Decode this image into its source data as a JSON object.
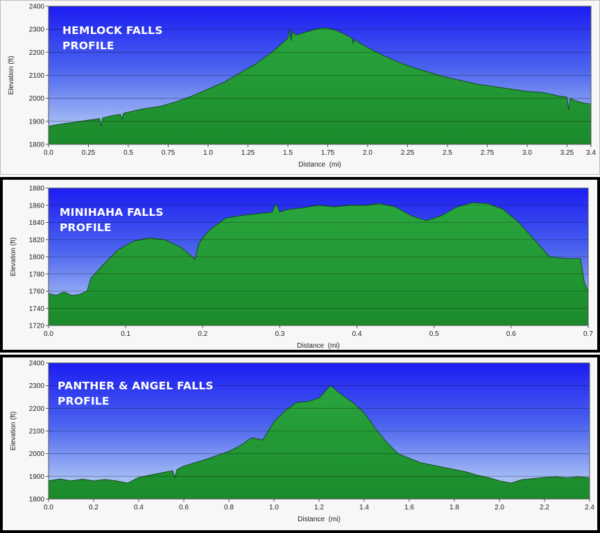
{
  "chart_data": [
    {
      "type": "area",
      "title_lines": [
        "HEMLOCK FALLS",
        "PROFILE"
      ],
      "xlabel": "Distance  (mi)",
      "ylabel": "Elevation (ft)",
      "xlim": [
        0,
        3.4
      ],
      "ylim": [
        1800,
        2400
      ],
      "xticks": [
        0,
        0.25,
        0.5,
        0.75,
        1.0,
        1.25,
        1.5,
        1.75,
        2.0,
        2.25,
        2.5,
        2.75,
        3.0,
        3.25,
        3.4
      ],
      "xtick_labels": [
        "0.0",
        "0.25",
        "0.5",
        "0.75",
        "1.0",
        "1.25",
        "1.5",
        "1.75",
        "2.0",
        "2.25",
        "2.5",
        "2.75",
        "3.0",
        "3.25",
        "3.4"
      ],
      "yticks": [
        1800,
        1900,
        2000,
        2100,
        2200,
        2300,
        2400
      ],
      "ytick_labels": [
        "1800",
        "1900",
        "2000",
        "2100",
        "2200",
        "2300",
        "2400"
      ],
      "grid": true,
      "series": [
        {
          "x": [
            0,
            0.05,
            0.1,
            0.2,
            0.3,
            0.32,
            0.33,
            0.34,
            0.4,
            0.45,
            0.46,
            0.47,
            0.5,
            0.6,
            0.7,
            0.8,
            0.9,
            1.0,
            1.1,
            1.2,
            1.25,
            1.3,
            1.4,
            1.45,
            1.5,
            1.51,
            1.52,
            1.53,
            1.55,
            1.6,
            1.65,
            1.7,
            1.75,
            1.8,
            1.85,
            1.9,
            1.91,
            1.92,
            1.93,
            1.95,
            2.0,
            2.1,
            2.2,
            2.3,
            2.4,
            2.5,
            2.6,
            2.7,
            2.8,
            2.9,
            3.0,
            3.1,
            3.2,
            3.25,
            3.26,
            3.27,
            3.3,
            3.35,
            3.4
          ],
          "y": [
            1878,
            1885,
            1890,
            1900,
            1910,
            1912,
            1880,
            1915,
            1925,
            1930,
            1910,
            1935,
            1940,
            1955,
            1965,
            1985,
            2010,
            2040,
            2070,
            2110,
            2130,
            2150,
            2200,
            2230,
            2260,
            2300,
            2250,
            2290,
            2275,
            2285,
            2295,
            2305,
            2305,
            2295,
            2280,
            2262,
            2240,
            2258,
            2250,
            2240,
            2220,
            2185,
            2155,
            2130,
            2110,
            2090,
            2075,
            2060,
            2050,
            2040,
            2030,
            2025,
            2010,
            2005,
            1950,
            2000,
            1990,
            1980,
            1975
          ]
        }
      ]
    },
    {
      "type": "area",
      "title_lines": [
        "MINIHAHA FALLS",
        "PROFILE"
      ],
      "xlabel": "Distance  (mi)",
      "ylabel": "Elevation (ft)",
      "xlim": [
        0,
        0.7
      ],
      "ylim": [
        1720,
        1880
      ],
      "xticks": [
        0,
        0.1,
        0.2,
        0.3,
        0.4,
        0.5,
        0.6,
        0.7
      ],
      "xtick_labels": [
        "0.0",
        "0.1",
        "0.2",
        "0.3",
        "0.4",
        "0.5",
        "0.6",
        "0.7"
      ],
      "yticks": [
        1720,
        1740,
        1760,
        1780,
        1800,
        1820,
        1840,
        1860,
        1880
      ],
      "ytick_labels": [
        "1720",
        "1740",
        "1760",
        "1780",
        "1800",
        "1820",
        "1840",
        "1860",
        "1880"
      ],
      "grid": true,
      "series": [
        {
          "x": [
            0,
            0.01,
            0.02,
            0.03,
            0.04,
            0.05,
            0.055,
            0.07,
            0.09,
            0.11,
            0.13,
            0.15,
            0.17,
            0.18,
            0.19,
            0.195,
            0.2,
            0.21,
            0.23,
            0.25,
            0.27,
            0.29,
            0.295,
            0.3,
            0.31,
            0.33,
            0.35,
            0.37,
            0.39,
            0.41,
            0.43,
            0.45,
            0.47,
            0.49,
            0.51,
            0.53,
            0.55,
            0.57,
            0.59,
            0.61,
            0.63,
            0.65,
            0.67,
            0.69,
            0.695,
            0.7
          ],
          "y": [
            1757,
            1755,
            1759,
            1755,
            1756,
            1760,
            1775,
            1790,
            1808,
            1818,
            1822,
            1820,
            1812,
            1805,
            1797,
            1815,
            1822,
            1832,
            1845,
            1848,
            1850,
            1852,
            1862,
            1852,
            1855,
            1857,
            1860,
            1858,
            1860,
            1860,
            1862,
            1858,
            1848,
            1842,
            1848,
            1858,
            1863,
            1862,
            1855,
            1840,
            1820,
            1800,
            1798,
            1798,
            1770,
            1760
          ]
        }
      ]
    },
    {
      "type": "area",
      "title_lines": [
        "PANTHER & ANGEL FALLS",
        "PROFILE"
      ],
      "xlabel": "Distance  (mi)",
      "ylabel": "Elevation (ft)",
      "xlim": [
        0,
        2.4
      ],
      "ylim": [
        1800,
        2400
      ],
      "xticks": [
        0,
        0.2,
        0.4,
        0.6,
        0.8,
        1.0,
        1.2,
        1.4,
        1.6,
        1.8,
        2.0,
        2.2,
        2.4
      ],
      "xtick_labels": [
        "0.0",
        "0.2",
        "0.4",
        "0.6",
        "0.8",
        "1.0",
        "1.2",
        "1.4",
        "1.6",
        "1.8",
        "2.0",
        "2.2",
        "2.4"
      ],
      "yticks": [
        1800,
        1900,
        2000,
        2100,
        2200,
        2300,
        2400
      ],
      "ytick_labels": [
        "1800",
        "1900",
        "2000",
        "2100",
        "2200",
        "2300",
        "2400"
      ],
      "grid": true,
      "series": [
        {
          "x": [
            0,
            0.05,
            0.1,
            0.15,
            0.2,
            0.25,
            0.3,
            0.35,
            0.4,
            0.45,
            0.5,
            0.55,
            0.56,
            0.57,
            0.6,
            0.7,
            0.8,
            0.85,
            0.9,
            0.95,
            1.0,
            1.05,
            1.1,
            1.15,
            1.2,
            1.25,
            1.3,
            1.35,
            1.4,
            1.45,
            1.5,
            1.55,
            1.6,
            1.65,
            1.7,
            1.75,
            1.8,
            1.85,
            1.9,
            1.95,
            2.0,
            2.05,
            2.1,
            2.15,
            2.2,
            2.25,
            2.3,
            2.35,
            2.4
          ],
          "y": [
            1880,
            1888,
            1880,
            1887,
            1880,
            1886,
            1880,
            1870,
            1895,
            1905,
            1915,
            1925,
            1895,
            1930,
            1945,
            1975,
            2010,
            2035,
            2070,
            2060,
            2140,
            2190,
            2225,
            2230,
            2245,
            2300,
            2260,
            2225,
            2180,
            2110,
            2050,
            2000,
            1980,
            1960,
            1950,
            1940,
            1930,
            1920,
            1905,
            1895,
            1880,
            1870,
            1885,
            1890,
            1895,
            1898,
            1893,
            1898,
            1893
          ]
        }
      ]
    }
  ]
}
